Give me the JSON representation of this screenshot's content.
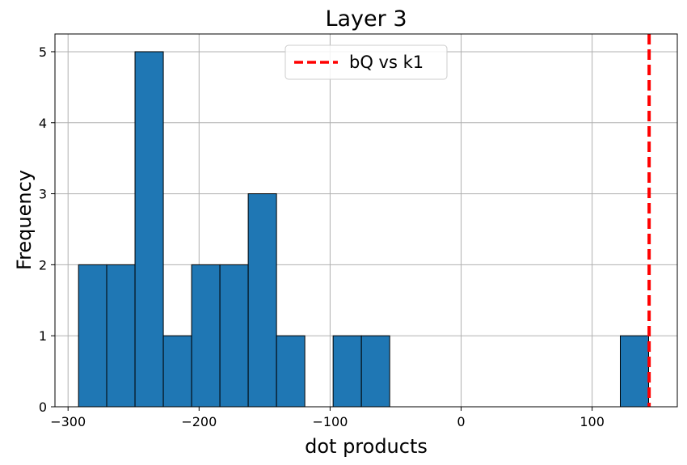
{
  "chart_data": {
    "type": "bar",
    "title": "Layer 3",
    "xlabel": "dot products",
    "ylabel": "Frequency",
    "xlim": [
      -310,
      165
    ],
    "ylim": [
      0,
      5.25
    ],
    "xticks": [
      -300,
      -200,
      -100,
      0,
      100
    ],
    "xtick_labels": [
      "−300",
      "−200",
      "−100",
      "0",
      "100"
    ],
    "yticks": [
      0,
      1,
      2,
      3,
      4,
      5
    ],
    "ytick_labels": [
      "0",
      "1",
      "2",
      "3",
      "4",
      "5"
    ],
    "grid": true,
    "bar_color": "#1f77b4",
    "bar_edge_color": "#000000",
    "bins": [
      {
        "x0": -292.0,
        "x1": -270.5,
        "count": 2
      },
      {
        "x0": -270.5,
        "x1": -248.9,
        "count": 2
      },
      {
        "x0": -248.9,
        "x1": -227.3,
        "count": 5
      },
      {
        "x0": -227.3,
        "x1": -205.7,
        "count": 1
      },
      {
        "x0": -205.7,
        "x1": -184.1,
        "count": 2
      },
      {
        "x0": -184.1,
        "x1": -162.5,
        "count": 2
      },
      {
        "x0": -162.5,
        "x1": -140.9,
        "count": 3
      },
      {
        "x0": -140.9,
        "x1": -119.3,
        "count": 1
      },
      {
        "x0": -97.7,
        "x1": -76.1,
        "count": 1
      },
      {
        "x0": -76.1,
        "x1": -54.5,
        "count": 1
      },
      {
        "x0": 121.5,
        "x1": 143.1,
        "count": 1
      }
    ],
    "reference_line": {
      "x": 143.5,
      "label": "bQ vs k1",
      "color": "#ff0000",
      "style": "dashed"
    },
    "legend_position": "top-center"
  }
}
